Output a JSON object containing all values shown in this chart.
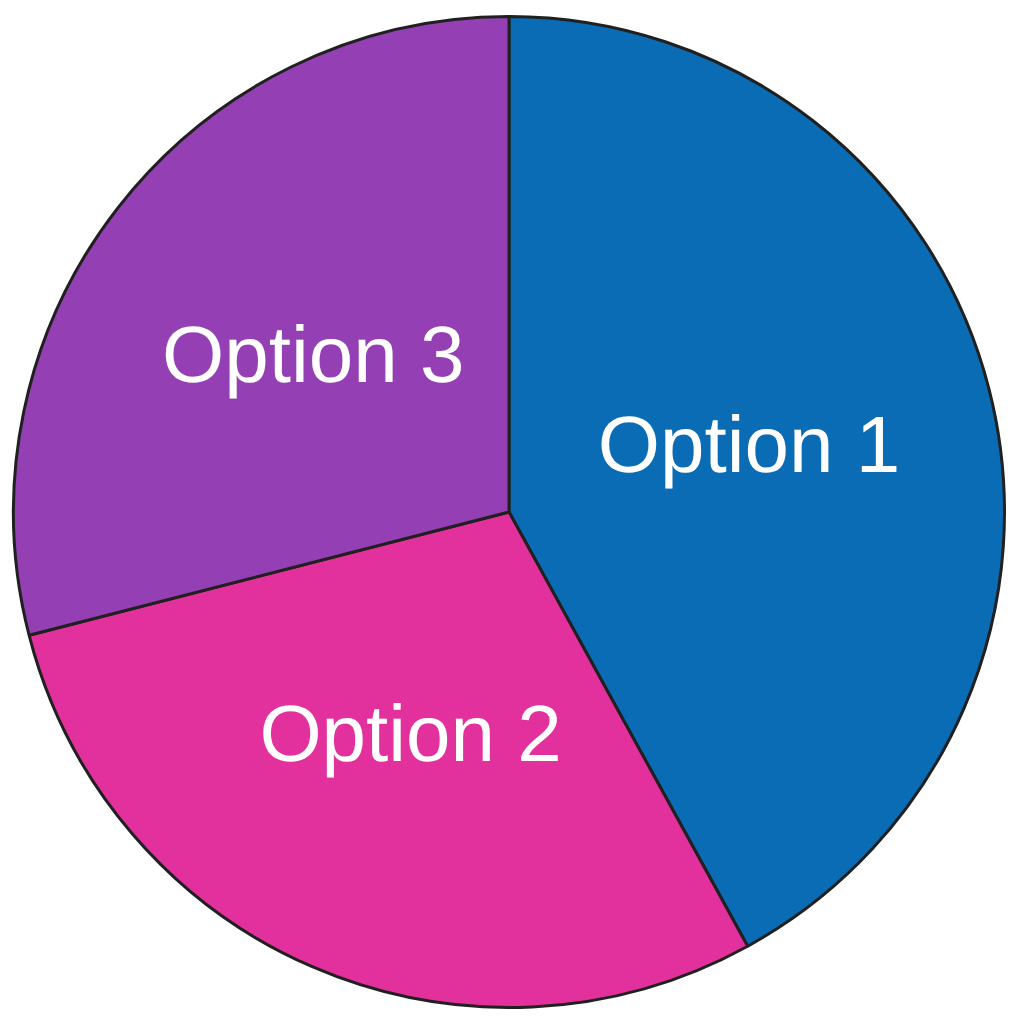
{
  "chart_data": {
    "type": "pie",
    "categories": [
      "Option 1",
      "Option 2",
      "Option 3"
    ],
    "values": [
      42,
      29,
      29
    ],
    "colors": [
      "#0a6cb4",
      "#e2309c",
      "#9440b4"
    ],
    "legend": false
  }
}
